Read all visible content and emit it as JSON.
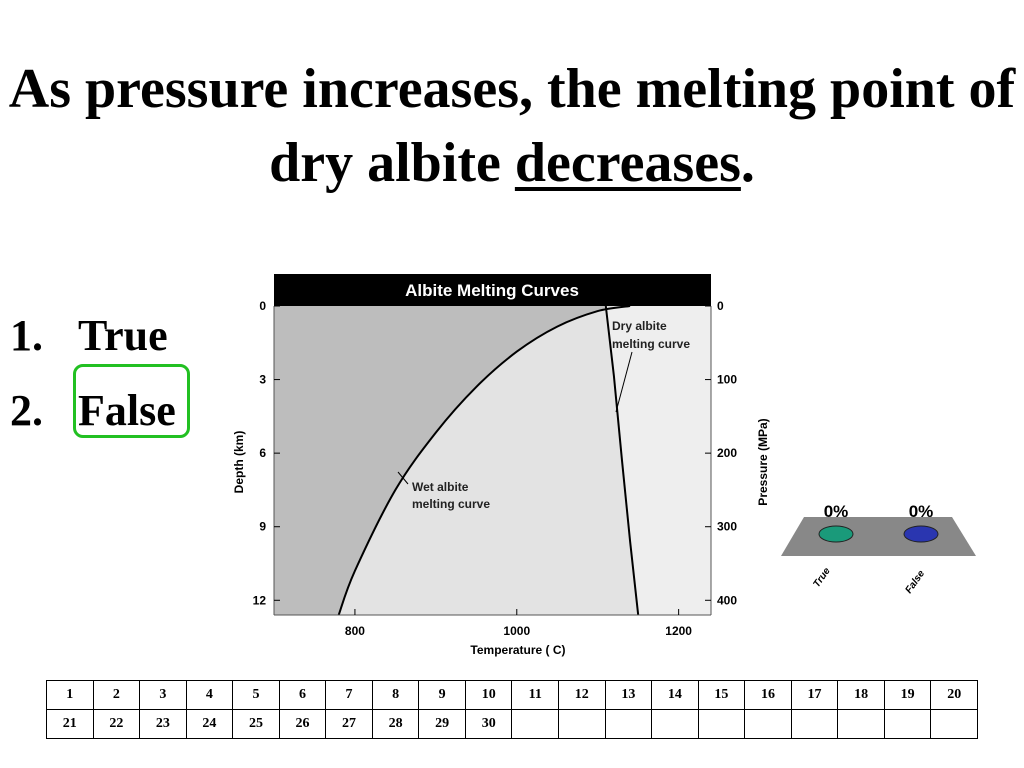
{
  "slide": {
    "title_before": "As pressure increases, the melting point of dry albite ",
    "title_emph": "decreases",
    "title_after": "."
  },
  "options": [
    {
      "num": "1.",
      "label": "True"
    },
    {
      "num": "2.",
      "label": "False"
    }
  ],
  "chart_data": {
    "type": "line",
    "title": "Albite Melting Curves",
    "xlabel": "Temperature (  C)",
    "ylabel_left": "Depth (km)",
    "ylabel_right": "Pressure (MPa)",
    "xlim": [
      700,
      1240
    ],
    "ylim_depth": [
      0,
      12.6
    ],
    "ylim_pressure": [
      0,
      420
    ],
    "x_ticks": [
      800,
      1000,
      1200
    ],
    "depth_ticks": [
      0,
      3,
      6,
      9,
      12
    ],
    "pressure_ticks": [
      0,
      100,
      200,
      300,
      400
    ],
    "series": [
      {
        "name": "Wet albite melting curve",
        "x": [
          780,
          800,
          850,
          900,
          950,
          1000,
          1050,
          1100,
          1140
        ],
        "pressure": [
          420,
          360,
          250,
          172,
          110,
          62,
          28,
          7,
          0
        ],
        "line_label": [
          "Wet albite",
          "melting curve"
        ]
      },
      {
        "name": "Dry albite melting curve",
        "x": [
          1110,
          1120,
          1130,
          1140,
          1150
        ],
        "pressure": [
          0,
          95,
          210,
          320,
          420
        ],
        "line_label": [
          "Dry albite",
          "melting curve"
        ]
      }
    ]
  },
  "poll": {
    "results": [
      {
        "label": "True",
        "percent": "0%",
        "color": "#1a9a7a"
      },
      {
        "label": "False",
        "percent": "0%",
        "color": "#2a36b0"
      }
    ]
  },
  "response_grid": {
    "rows": [
      [
        "1",
        "2",
        "3",
        "4",
        "5",
        "6",
        "7",
        "8",
        "9",
        "10",
        "11",
        "12",
        "13",
        "14",
        "15",
        "16",
        "17",
        "18",
        "19",
        "20"
      ],
      [
        "21",
        "22",
        "23",
        "24",
        "25",
        "26",
        "27",
        "28",
        "29",
        "30",
        "",
        "",
        "",
        "",
        "",
        "",
        "",
        "",
        "",
        ""
      ]
    ]
  }
}
